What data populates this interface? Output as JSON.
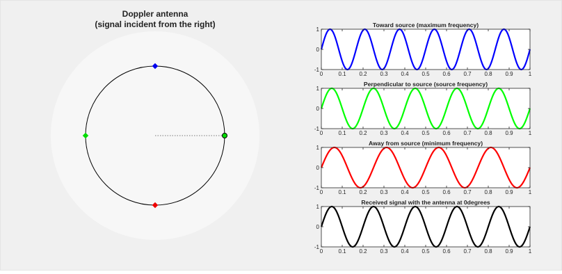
{
  "figure": {
    "background": "#f0f0f0",
    "antenna_panel": {
      "title": "Doppler antenna",
      "subtitle": "(signal incident from the right)",
      "disc_color": "#f7f7f7",
      "markers": [
        {
          "name": "top",
          "angle_deg": 90,
          "color": "#0000ee"
        },
        {
          "name": "left",
          "angle_deg": 180,
          "color": "#00dd00"
        },
        {
          "name": "bottom",
          "angle_deg": 270,
          "color": "#ee0000"
        },
        {
          "name": "right",
          "angle_deg": 0,
          "color": "#00dd00"
        }
      ]
    }
  },
  "chart_data": [
    {
      "type": "line",
      "title": "Toward source (maximum frequency)",
      "xlim": [
        0,
        1
      ],
      "ylim": [
        -1,
        1
      ],
      "xticks": [
        "0",
        "0.1",
        "0.2",
        "0.3",
        "0.4",
        "0.5",
        "0.6",
        "0.7",
        "0.8",
        "0.9",
        "1"
      ],
      "yticks": [
        "-1",
        "0",
        "1"
      ],
      "series": [
        {
          "function": "sin(2*pi*6*x)",
          "cycles": 6,
          "phase_deg": 0,
          "color": "#0000ff"
        }
      ]
    },
    {
      "type": "line",
      "title": "Perpendicular to source (source frequency)",
      "xlim": [
        0,
        1
      ],
      "ylim": [
        -1,
        1
      ],
      "xticks": [
        "0",
        "0.1",
        "0.2",
        "0.3",
        "0.4",
        "0.5",
        "0.6",
        "0.7",
        "0.8",
        "0.9",
        "1"
      ],
      "yticks": [
        "-1",
        "0",
        "1"
      ],
      "series": [
        {
          "function": "sin(2*pi*5*x)",
          "cycles": 5,
          "phase_deg": 0,
          "color": "#00ff00"
        }
      ]
    },
    {
      "type": "line",
      "title": "Away from source (minimum frequency)",
      "xlim": [
        0,
        1
      ],
      "ylim": [
        -1,
        1
      ],
      "xticks": [
        "0",
        "0.1",
        "0.2",
        "0.3",
        "0.4",
        "0.5",
        "0.6",
        "0.7",
        "0.8",
        "0.9",
        "1"
      ],
      "yticks": [
        "-1",
        "0",
        "1"
      ],
      "series": [
        {
          "function": "sin(2*pi*4*x)",
          "cycles": 4,
          "phase_deg": 0,
          "color": "#ff0000"
        }
      ]
    },
    {
      "type": "line",
      "title": "Received signal with the antenna at 0degrees",
      "xlim": [
        0,
        1
      ],
      "ylim": [
        -1,
        1
      ],
      "xticks": [
        "0",
        "0.1",
        "0.2",
        "0.3",
        "0.4",
        "0.5",
        "0.6",
        "0.7",
        "0.8",
        "0.9",
        "1"
      ],
      "yticks": [
        "-1",
        "0",
        "1"
      ],
      "series": [
        {
          "function": "sin(2*pi*5*x)",
          "cycles": 5,
          "phase_deg": 0,
          "color": "#000000"
        }
      ]
    }
  ]
}
